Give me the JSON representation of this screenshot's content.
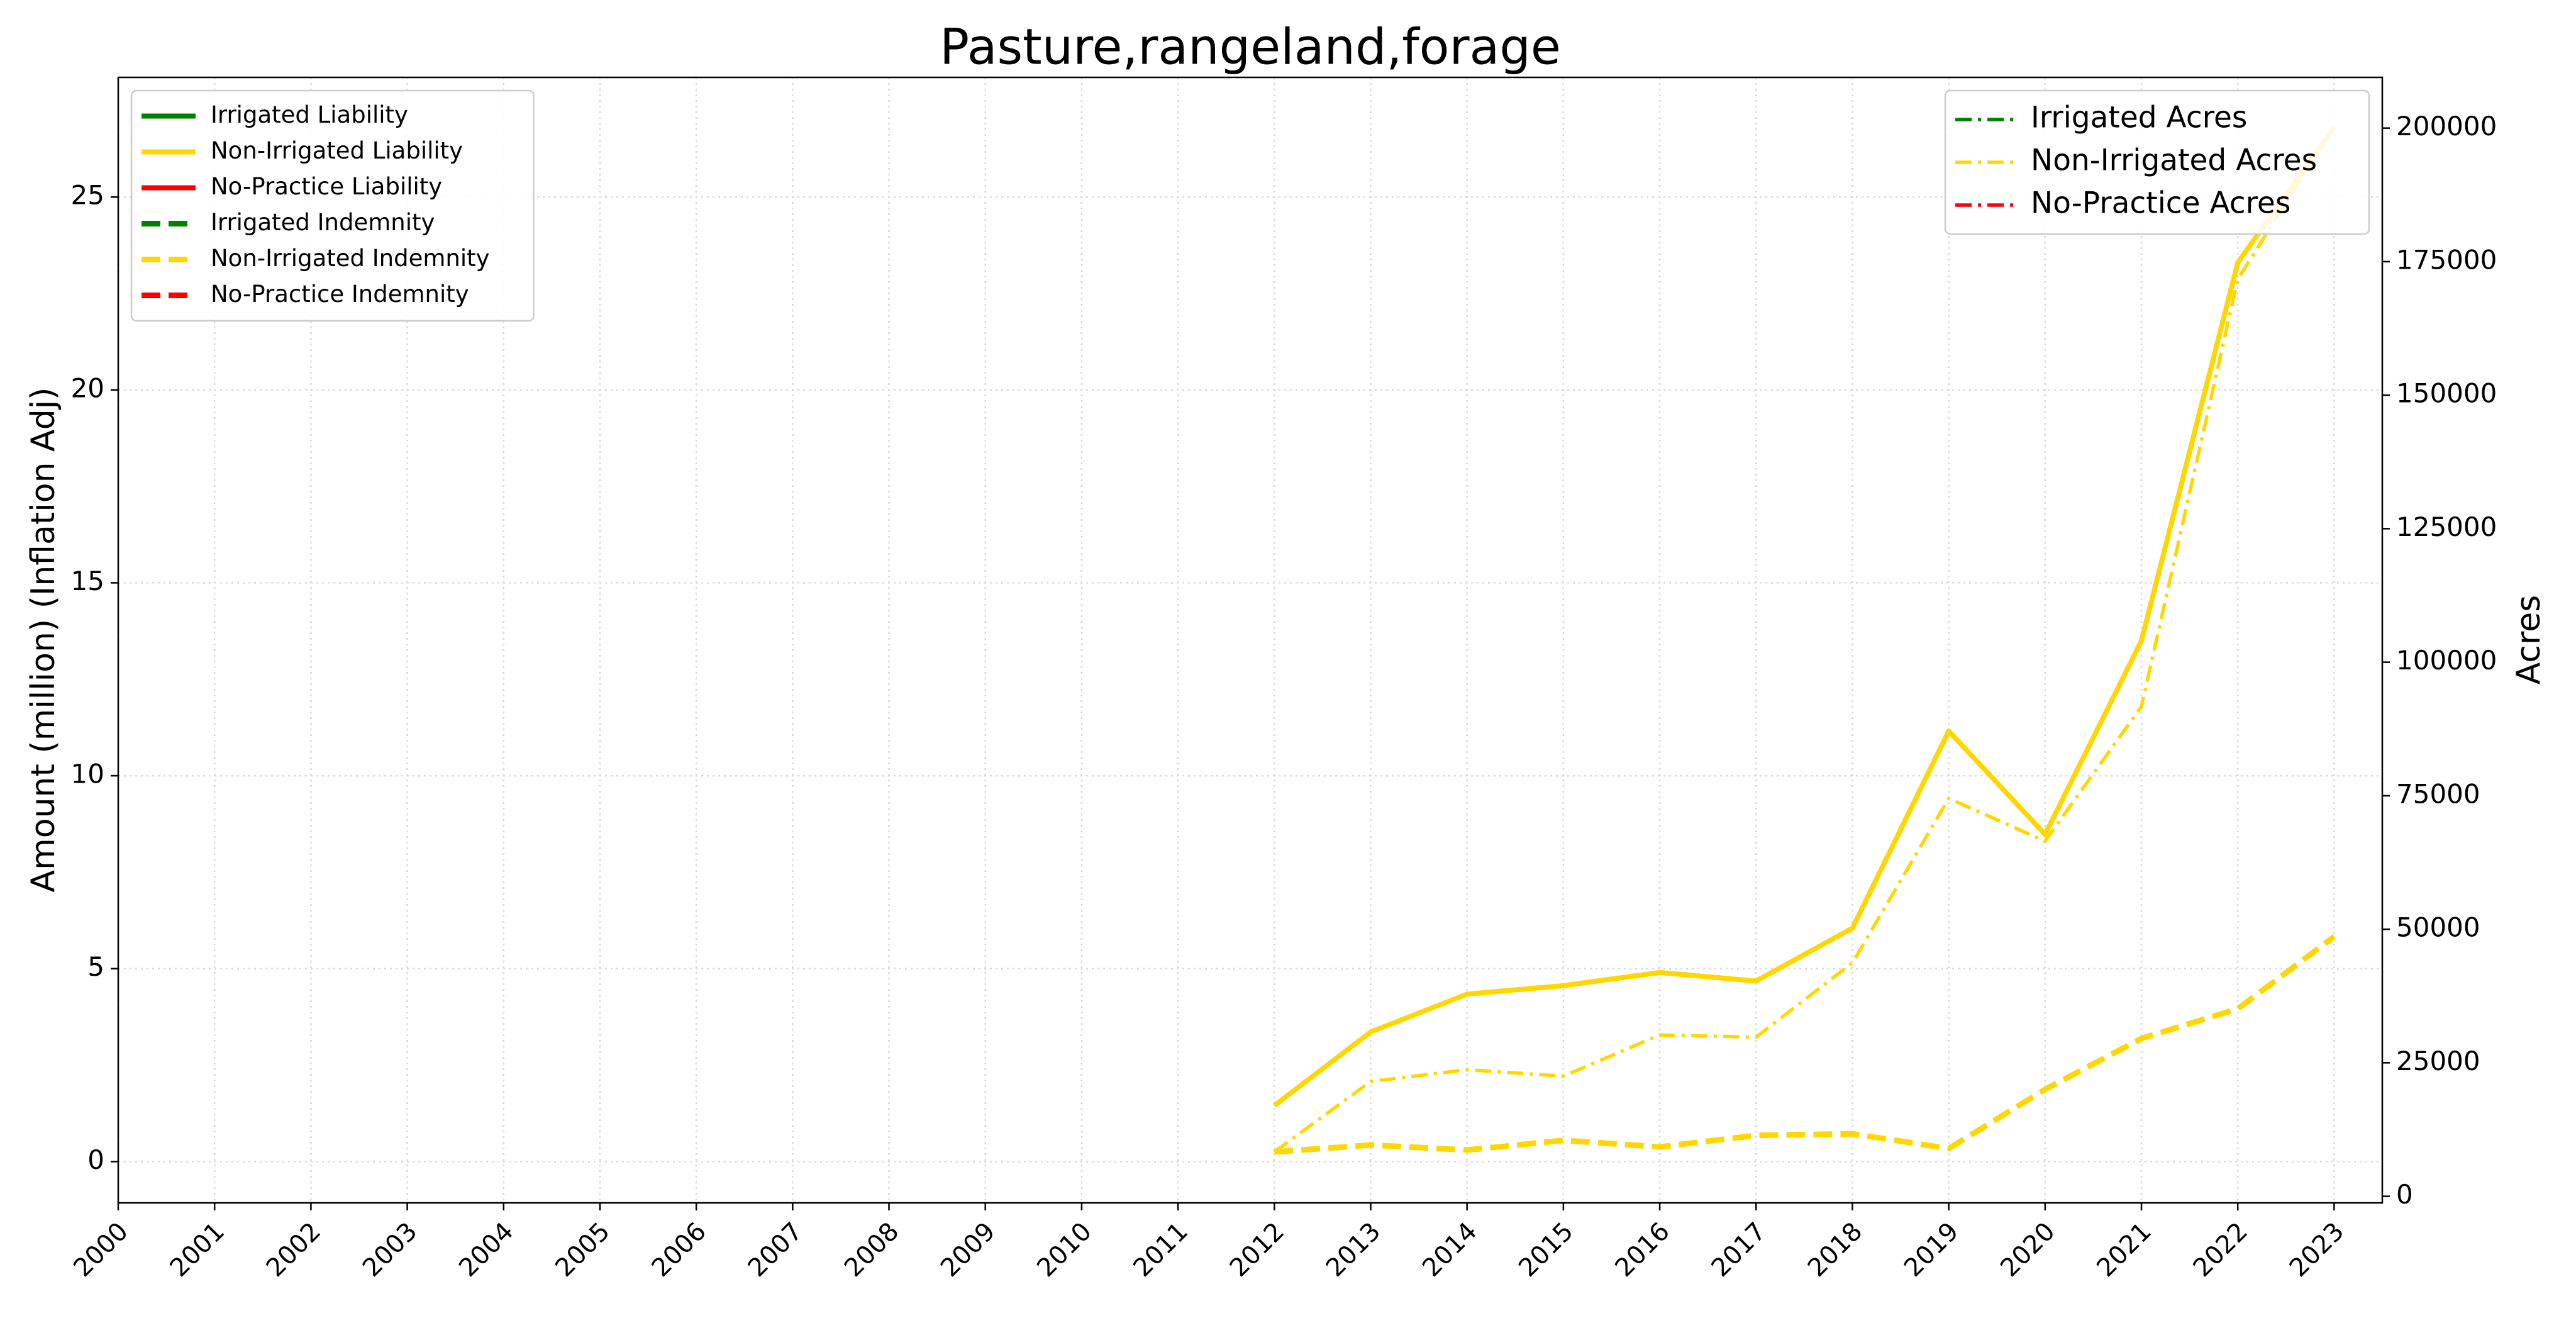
{
  "chart_data": {
    "type": "line",
    "title": "Pasture,rangeland,forage",
    "ylabel": "Amount (million) (Inflation Adj)",
    "y2label": "Acres",
    "x": [
      2000,
      2001,
      2002,
      2003,
      2004,
      2005,
      2006,
      2007,
      2008,
      2009,
      2010,
      2011,
      2012,
      2013,
      2014,
      2015,
      2016,
      2017,
      2018,
      2019,
      2020,
      2021,
      2022,
      2023
    ],
    "xlim": [
      2000,
      2023.5
    ],
    "xticks": [
      2000,
      2001,
      2002,
      2003,
      2004,
      2005,
      2006,
      2007,
      2008,
      2009,
      2010,
      2011,
      2012,
      2013,
      2014,
      2015,
      2016,
      2017,
      2018,
      2019,
      2020,
      2021,
      2022,
      2023
    ],
    "ylim": [
      -1.07,
      28.1
    ],
    "yticks": [
      0,
      5,
      10,
      15,
      20,
      25
    ],
    "y2lim": [
      -1230,
      209500
    ],
    "y2ticks": [
      0,
      25000,
      50000,
      75000,
      100000,
      125000,
      150000,
      175000,
      200000
    ],
    "grid": true,
    "legend": "upper left",
    "legend2": "upper right",
    "series": [
      {
        "name": "Irrigated Liability",
        "color": "#008000",
        "linestyle": "solid",
        "values": [
          null,
          null,
          null,
          null,
          null,
          null,
          null,
          null,
          null,
          null,
          null,
          null,
          null,
          null,
          null,
          null,
          null,
          null,
          null,
          null,
          null,
          null,
          null,
          null
        ]
      },
      {
        "name": "Non-Irrigated Liability",
        "color": "#ffd700",
        "linestyle": "solid",
        "values": [
          null,
          null,
          null,
          null,
          null,
          null,
          null,
          null,
          null,
          null,
          null,
          null,
          1.45,
          3.36,
          4.34,
          4.56,
          4.9,
          4.68,
          6.05,
          11.16,
          8.48,
          13.5,
          23.3,
          26.8
        ]
      },
      {
        "name": "No-Practice Liability",
        "color": "#ff0000",
        "linestyle": "solid",
        "values": [
          null,
          null,
          null,
          null,
          null,
          null,
          null,
          null,
          null,
          null,
          null,
          null,
          null,
          null,
          null,
          null,
          null,
          null,
          null,
          null,
          null,
          null,
          null,
          null
        ]
      },
      {
        "name": "Irrigated Indemnity",
        "color": "#008000",
        "linestyle": "dashed",
        "values": [
          null,
          null,
          null,
          null,
          null,
          null,
          null,
          null,
          null,
          null,
          null,
          null,
          null,
          null,
          null,
          null,
          null,
          null,
          null,
          null,
          null,
          null,
          null,
          null
        ]
      },
      {
        "name": "Non-Irrigated Indemnity",
        "color": "#ffd700",
        "linestyle": "dashed",
        "values": [
          null,
          null,
          null,
          null,
          null,
          null,
          null,
          null,
          null,
          null,
          null,
          null,
          0.25,
          0.43,
          0.3,
          0.55,
          0.38,
          0.68,
          0.72,
          0.34,
          1.87,
          3.19,
          3.96,
          5.83
        ]
      },
      {
        "name": "No-Practice Indemnity",
        "color": "#ff0000",
        "linestyle": "dashed",
        "values": [
          null,
          null,
          null,
          null,
          null,
          null,
          null,
          null,
          null,
          null,
          null,
          null,
          null,
          null,
          null,
          null,
          null,
          null,
          null,
          null,
          null,
          null,
          null,
          null
        ]
      },
      {
        "name": "Irrigated Acres",
        "color": "#008000",
        "linestyle": "dashdot",
        "axis": "y2",
        "values": [
          null,
          null,
          null,
          null,
          null,
          null,
          null,
          null,
          null,
          null,
          null,
          null,
          null,
          null,
          null,
          null,
          null,
          null,
          null,
          null,
          null,
          null,
          null,
          null
        ]
      },
      {
        "name": "Non-Irrigated Acres",
        "color": "#ffd700",
        "linestyle": "dashdot",
        "axis": "y2",
        "values": [
          null,
          null,
          null,
          null,
          null,
          null,
          null,
          null,
          null,
          null,
          null,
          null,
          8300,
          21500,
          23700,
          22500,
          30200,
          29800,
          43700,
          74500,
          66500,
          91700,
          171700,
          200300
        ]
      },
      {
        "name": "No-Practice Acres",
        "color": "#ff0000",
        "linestyle": "dashdot",
        "axis": "y2",
        "values": [
          null,
          null,
          null,
          null,
          null,
          null,
          null,
          null,
          null,
          null,
          null,
          null,
          null,
          null,
          null,
          null,
          null,
          null,
          null,
          null,
          null,
          null,
          null,
          null
        ]
      }
    ]
  }
}
